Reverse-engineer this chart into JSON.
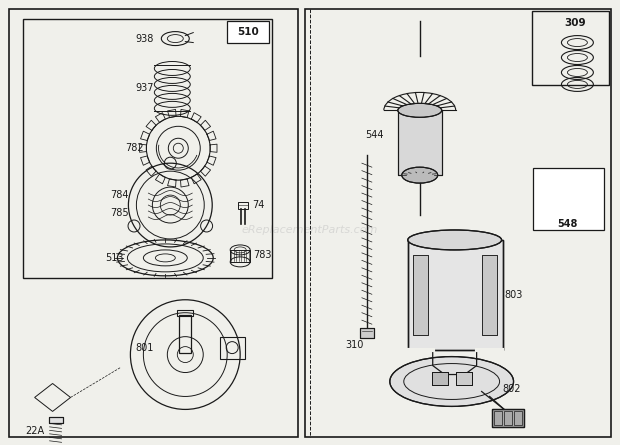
{
  "bg_color": "#f0f0eb",
  "line_color": "#1a1a1a",
  "watermark": "eReplacementParts.com",
  "figsize": [
    6.2,
    4.45
  ],
  "dpi": 100
}
